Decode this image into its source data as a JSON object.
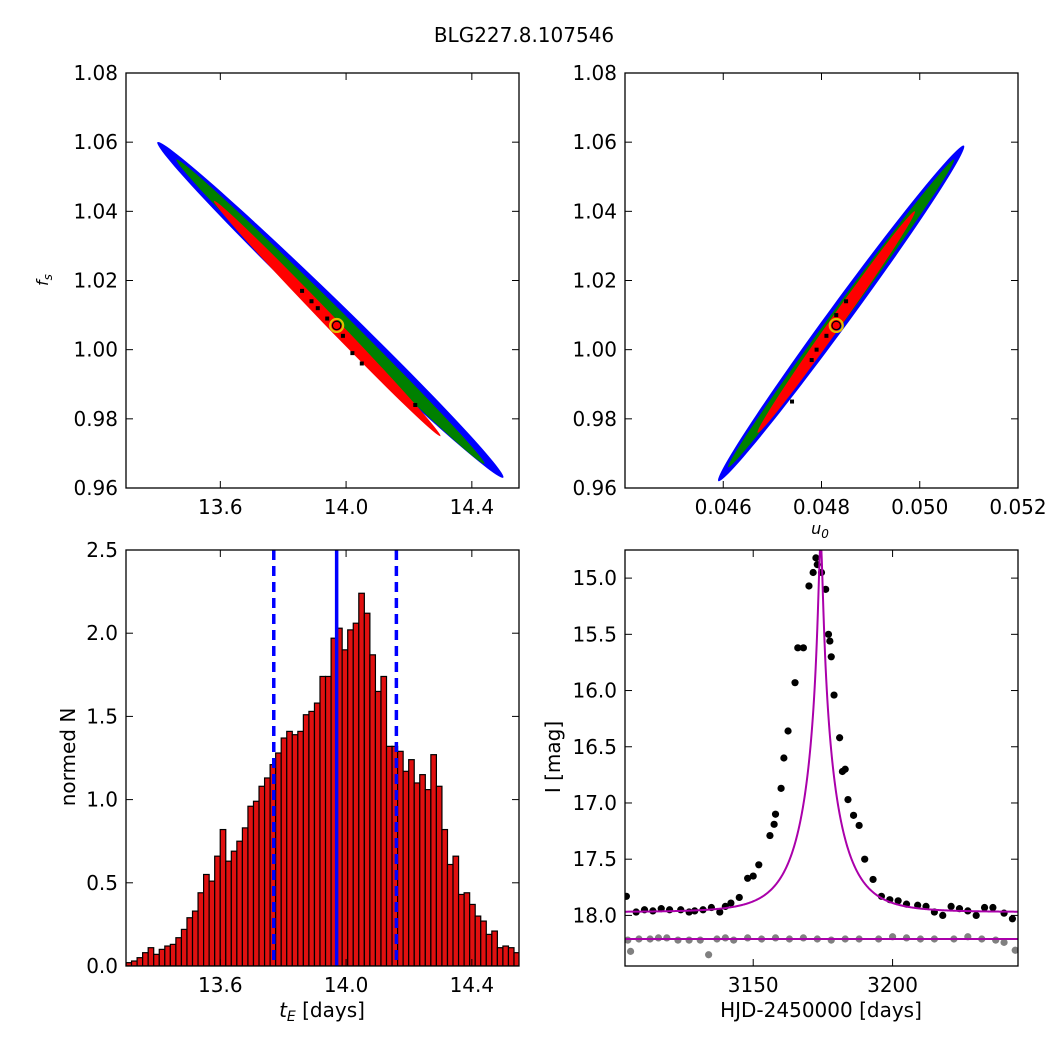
{
  "figure": {
    "title": "BLG227.8.107546"
  },
  "chart_data": [
    {
      "id": "tl",
      "type": "heatmap",
      "xlabel": "",
      "ylabel": "f_s",
      "xlim": [
        13.3,
        14.55
      ],
      "ylim": [
        0.96,
        1.08
      ],
      "xticks": [
        13.6,
        14.0,
        14.4
      ],
      "xtick_labels": [
        "13.6",
        "14.0",
        "14.4"
      ],
      "yticks": [
        0.96,
        0.98,
        1.0,
        1.02,
        1.04,
        1.06,
        1.08
      ],
      "ytick_labels": [
        "0.96",
        "0.98",
        "1.00",
        "1.02",
        "1.04",
        "1.06",
        "1.08"
      ],
      "regions": [
        {
          "level": "outer",
          "color": "#0000ff",
          "x0": 13.4,
          "y0": 1.06,
          "x1": 14.5,
          "y1": 0.963,
          "width": 0.075
        },
        {
          "level": "middle",
          "color": "#008000",
          "x0": 13.46,
          "y0": 1.055,
          "x1": 14.44,
          "y1": 0.967,
          "width": 0.05
        },
        {
          "level": "inner",
          "color": "#ff0000",
          "x0": 13.58,
          "y0": 1.043,
          "x1": 14.3,
          "y1": 0.975,
          "width": 0.028
        }
      ],
      "best_fit": {
        "x": 13.97,
        "y": 1.007
      },
      "samples": [
        [
          13.89,
          1.014
        ],
        [
          13.91,
          1.012
        ],
        [
          13.94,
          1.009
        ],
        [
          13.99,
          1.004
        ],
        [
          14.02,
          0.999
        ],
        [
          14.05,
          0.996
        ],
        [
          14.22,
          0.984
        ],
        [
          13.86,
          1.017
        ]
      ]
    },
    {
      "id": "tr",
      "type": "heatmap",
      "xlabel": "u_0",
      "ylabel": "",
      "xlim": [
        0.044,
        0.052
      ],
      "ylim": [
        0.96,
        1.08
      ],
      "xticks": [
        0.046,
        0.048,
        0.05,
        0.052
      ],
      "xtick_labels": [
        "0.046",
        "0.048",
        "0.050",
        "0.052"
      ],
      "yticks": [
        0.96,
        0.98,
        1.0,
        1.02,
        1.04,
        1.06,
        1.08
      ],
      "ytick_labels": [
        "0.96",
        "0.98",
        "1.00",
        "1.02",
        "1.04",
        "1.06",
        "1.08"
      ],
      "regions": [
        {
          "level": "outer",
          "color": "#0000ff",
          "x0": 0.0459,
          "y0": 0.962,
          "x1": 0.0509,
          "y1": 1.059,
          "width": 0.00045
        },
        {
          "level": "middle",
          "color": "#008000",
          "x0": 0.0461,
          "y0": 0.966,
          "x1": 0.0507,
          "y1": 1.055,
          "width": 0.0003
        },
        {
          "level": "inner",
          "color": "#ff0000",
          "x0": 0.0467,
          "y0": 0.976,
          "x1": 0.0499,
          "y1": 1.04,
          "width": 0.00016
        }
      ],
      "best_fit": {
        "x": 0.0483,
        "y": 1.007
      },
      "samples": [
        [
          0.0479,
          1.0
        ],
        [
          0.0481,
          1.004
        ],
        [
          0.0483,
          1.01
        ],
        [
          0.0485,
          1.014
        ],
        [
          0.0474,
          0.985
        ],
        [
          0.0478,
          0.997
        ]
      ]
    },
    {
      "id": "bl",
      "type": "bar",
      "xlabel": "t_E [days]",
      "ylabel": "normed N",
      "xlim": [
        13.3,
        14.55
      ],
      "ylim": [
        0.0,
        2.5
      ],
      "xticks": [
        13.6,
        14.0,
        14.4
      ],
      "xtick_labels": [
        "13.6",
        "14.0",
        "14.4"
      ],
      "yticks": [
        0.0,
        0.5,
        1.0,
        1.5,
        2.0,
        2.5
      ],
      "ytick_labels": [
        "0.0",
        "0.5",
        "1.0",
        "1.5",
        "2.0",
        "2.5"
      ],
      "bin_start": 13.3,
      "bin_width": 0.01763,
      "values": [
        0.02,
        0.03,
        0.05,
        0.08,
        0.11,
        0.07,
        0.1,
        0.12,
        0.13,
        0.17,
        0.22,
        0.29,
        0.33,
        0.44,
        0.55,
        0.51,
        0.66,
        0.82,
        0.63,
        0.69,
        0.75,
        0.83,
        0.96,
        0.99,
        1.08,
        1.13,
        1.21,
        1.28,
        1.37,
        1.41,
        1.39,
        1.41,
        1.51,
        1.53,
        1.58,
        1.74,
        1.74,
        1.97,
        2.03,
        1.9,
        2.02,
        2.06,
        2.24,
        2.12,
        1.87,
        1.65,
        1.74,
        1.32,
        1.32,
        1.29,
        1.17,
        1.24,
        1.1,
        1.15,
        1.06,
        1.27,
        1.08,
        0.82,
        0.61,
        0.66,
        0.43,
        0.44,
        0.37,
        0.3,
        0.27,
        0.19,
        0.21,
        0.11,
        0.12,
        0.11,
        0.08,
        0.06,
        0.04,
        0.02
      ],
      "vlines": [
        {
          "x": 13.97,
          "style": "solid",
          "color": "#0000ff"
        },
        {
          "x": 13.77,
          "style": "dashed",
          "color": "#0000ff"
        },
        {
          "x": 14.16,
          "style": "dashed",
          "color": "#0000ff"
        }
      ]
    },
    {
      "id": "br",
      "type": "scatter",
      "xlabel": "HJD-2450000 [days]",
      "ylabel": "I [mag]",
      "xlim": [
        3104.0,
        3245.0
      ],
      "ylim": [
        18.45,
        14.75
      ],
      "xticks": [
        3150,
        3200
      ],
      "xtick_labels": [
        "3150",
        "3200"
      ],
      "yticks": [
        15.0,
        15.5,
        16.0,
        16.5,
        17.0,
        17.5,
        18.0
      ],
      "ytick_labels": [
        "15.0",
        "15.5",
        "16.0",
        "16.5",
        "17.0",
        "17.5",
        "18.0"
      ],
      "model": {
        "t0": 3174.2,
        "tE": 13.97,
        "u0": 0.0483,
        "fs": 1.007,
        "base_mag": 17.97,
        "color": "#aa00aa"
      },
      "baseline2": {
        "mag": 18.21,
        "color": "#aa00aa"
      },
      "points": [
        [
          3104.5,
          17.83
        ],
        [
          3108,
          17.97
        ],
        [
          3111,
          17.95
        ],
        [
          3114,
          17.96
        ],
        [
          3117,
          17.94
        ],
        [
          3120,
          17.95
        ],
        [
          3124,
          17.95
        ],
        [
          3127,
          17.97
        ],
        [
          3129,
          17.96
        ],
        [
          3132,
          17.95
        ],
        [
          3135,
          17.93
        ],
        [
          3138,
          17.97
        ],
        [
          3140,
          17.92
        ],
        [
          3142,
          17.89
        ],
        [
          3145,
          17.84
        ],
        [
          3148,
          17.67
        ],
        [
          3150,
          17.65
        ],
        [
          3152,
          17.55
        ],
        [
          3156,
          17.29
        ],
        [
          3157.5,
          17.19
        ],
        [
          3158,
          17.1
        ],
        [
          3160,
          16.87
        ],
        [
          3161,
          16.6
        ],
        [
          3162.5,
          16.36
        ],
        [
          3165,
          15.93
        ],
        [
          3166,
          15.62
        ],
        [
          3168,
          15.62
        ],
        [
          3170,
          15.07
        ],
        [
          3171.5,
          14.95
        ],
        [
          3172.5,
          14.82
        ],
        [
          3173,
          14.88
        ],
        [
          3174.5,
          14.95
        ],
        [
          3176,
          15.1
        ],
        [
          3177,
          15.5
        ],
        [
          3177.5,
          15.56
        ],
        [
          3178,
          15.7
        ],
        [
          3179,
          16.04
        ],
        [
          3181,
          16.42
        ],
        [
          3182,
          16.72
        ],
        [
          3183,
          16.7
        ],
        [
          3184,
          16.97
        ],
        [
          3186,
          17.11
        ],
        [
          3188,
          17.2
        ],
        [
          3190,
          17.5
        ],
        [
          3193,
          17.68
        ],
        [
          3196,
          17.83
        ],
        [
          3199,
          17.86
        ],
        [
          3202,
          17.87
        ],
        [
          3205,
          17.9
        ],
        [
          3209,
          17.91
        ],
        [
          3212,
          17.92
        ],
        [
          3215,
          17.97
        ],
        [
          3218,
          18.0
        ],
        [
          3221,
          17.92
        ],
        [
          3224,
          17.94
        ],
        [
          3227,
          17.96
        ],
        [
          3230,
          18.0
        ],
        [
          3233,
          17.93
        ],
        [
          3236,
          17.93
        ],
        [
          3240,
          17.98
        ],
        [
          3243,
          18.03
        ]
      ],
      "points2": [
        [
          3105,
          18.22
        ],
        [
          3106,
          18.32
        ],
        [
          3109,
          18.21
        ],
        [
          3113,
          18.21
        ],
        [
          3116,
          18.2
        ],
        [
          3119,
          18.2
        ],
        [
          3123,
          18.22
        ],
        [
          3127,
          18.22
        ],
        [
          3131,
          18.22
        ],
        [
          3134,
          18.35
        ],
        [
          3137,
          18.21
        ],
        [
          3140,
          18.2
        ],
        [
          3143,
          18.22
        ],
        [
          3148,
          18.2
        ],
        [
          3153,
          18.21
        ],
        [
          3158,
          18.2
        ],
        [
          3163,
          18.21
        ],
        [
          3168,
          18.2
        ],
        [
          3173,
          18.21
        ],
        [
          3178,
          18.22
        ],
        [
          3183,
          18.21
        ],
        [
          3188,
          18.21
        ],
        [
          3195,
          18.21
        ],
        [
          3200,
          18.19
        ],
        [
          3205,
          18.2
        ],
        [
          3210,
          18.21
        ],
        [
          3215,
          18.21
        ],
        [
          3222,
          18.21
        ],
        [
          3227,
          18.19
        ],
        [
          3232,
          18.21
        ],
        [
          3237,
          18.22
        ],
        [
          3240,
          18.24
        ],
        [
          3244,
          18.31
        ]
      ]
    }
  ]
}
